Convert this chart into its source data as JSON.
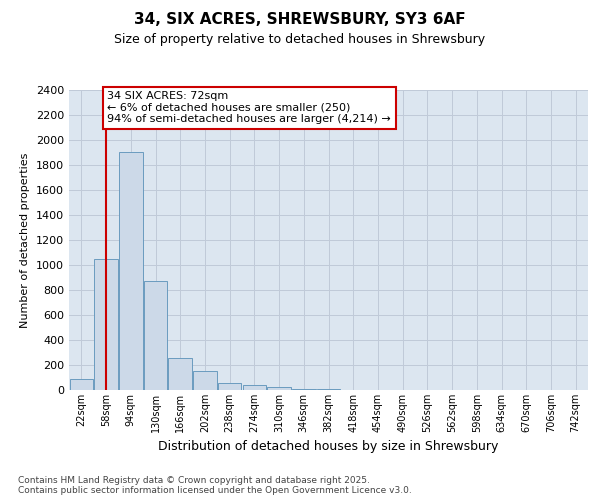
{
  "title": "34, SIX ACRES, SHREWSBURY, SY3 6AF",
  "subtitle": "Size of property relative to detached houses in Shrewsbury",
  "xlabel": "Distribution of detached houses by size in Shrewsbury",
  "ylabel": "Number of detached properties",
  "bar_color": "#ccd9e8",
  "bar_edge_color": "#6a9bbf",
  "grid_color": "#c0cad8",
  "background_color": "#dce6f0",
  "categories": [
    "22sqm",
    "58sqm",
    "94sqm",
    "130sqm",
    "166sqm",
    "202sqm",
    "238sqm",
    "274sqm",
    "310sqm",
    "346sqm",
    "382sqm",
    "418sqm",
    "454sqm",
    "490sqm",
    "526sqm",
    "562sqm",
    "598sqm",
    "634sqm",
    "670sqm",
    "706sqm",
    "742sqm"
  ],
  "values": [
    90,
    1045,
    1905,
    870,
    260,
    150,
    60,
    42,
    22,
    12,
    5,
    0,
    0,
    0,
    0,
    0,
    0,
    0,
    0,
    0,
    0
  ],
  "ylim": [
    0,
    2400
  ],
  "yticks": [
    0,
    200,
    400,
    600,
    800,
    1000,
    1200,
    1400,
    1600,
    1800,
    2000,
    2200,
    2400
  ],
  "vline_x": 1.0,
  "vline_color": "#cc0000",
  "annotation_text": "34 SIX ACRES: 72sqm\n← 6% of detached houses are smaller (250)\n94% of semi-detached houses are larger (4,214) →",
  "annotation_box_color": "#ffffff",
  "annotation_box_edge": "#cc0000",
  "footer": "Contains HM Land Registry data © Crown copyright and database right 2025.\nContains public sector information licensed under the Open Government Licence v3.0.",
  "fig_bg": "#ffffff",
  "title_fontsize": 11,
  "subtitle_fontsize": 9,
  "ylabel_fontsize": 8,
  "xlabel_fontsize": 9,
  "tick_fontsize": 8,
  "xtick_fontsize": 7,
  "annotation_fontsize": 8,
  "footer_fontsize": 6.5
}
